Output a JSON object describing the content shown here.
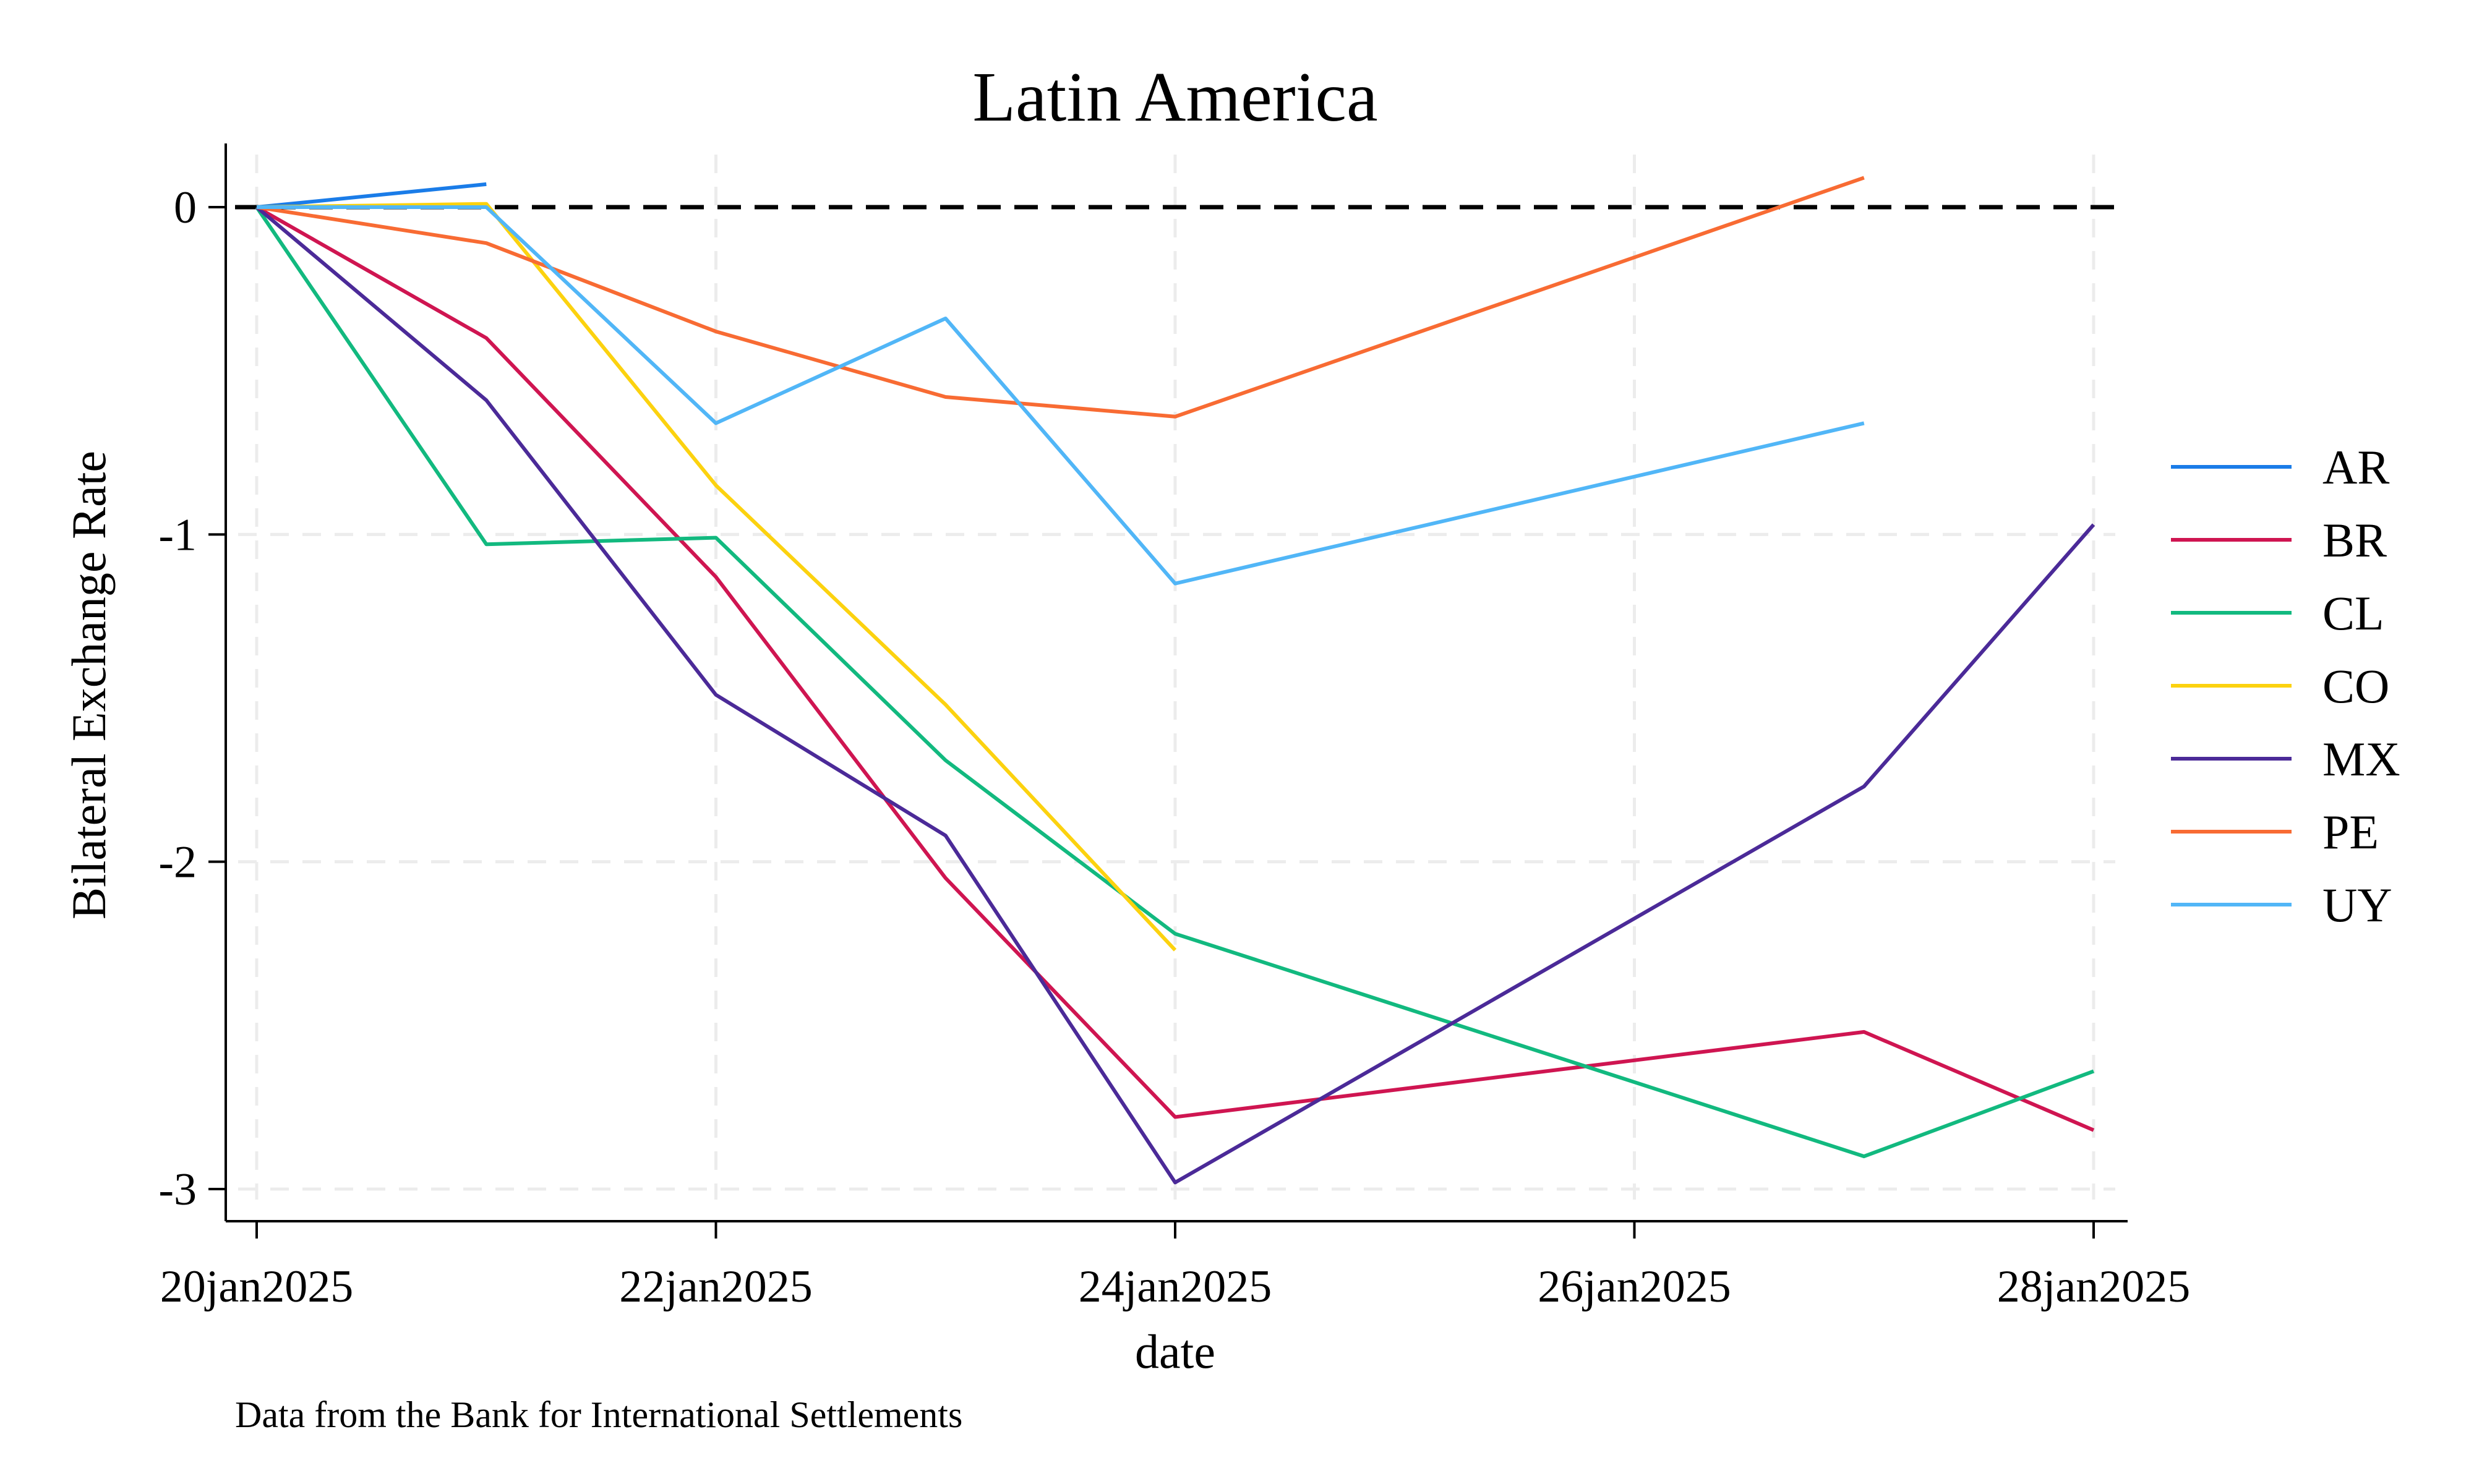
{
  "chart_data": {
    "type": "line",
    "title": "Latin America",
    "xlabel": "date",
    "ylabel": "Bilateral Exchange Rate",
    "note": "Data from the Bank for International Settlements",
    "x_ticks": [
      "20jan2025",
      "22jan2025",
      "24jan2025",
      "26jan2025",
      "28jan2025"
    ],
    "y_ticks": [
      0,
      -1,
      -2,
      -3
    ],
    "xlim": [
      "2025-01-20",
      "2025-01-28"
    ],
    "ylim": [
      -3.08,
      0.2
    ],
    "grid": true,
    "reference_line": 0,
    "legend": {
      "position": "right"
    },
    "series": [
      {
        "name": "AR",
        "color": "#1a7ce8",
        "points": [
          [
            "2025-01-20",
            0
          ],
          [
            "2025-01-21",
            0.07
          ]
        ]
      },
      {
        "name": "BR",
        "color": "#cf1551",
        "points": [
          [
            "2025-01-20",
            0
          ],
          [
            "2025-01-21",
            -0.4
          ],
          [
            "2025-01-22",
            -1.13
          ],
          [
            "2025-01-23",
            -2.05
          ],
          [
            "2025-01-24",
            -2.78
          ],
          [
            "2025-01-27",
            -2.52
          ],
          [
            "2025-01-28",
            -2.82
          ]
        ]
      },
      {
        "name": "CL",
        "color": "#12b97f",
        "points": [
          [
            "2025-01-20",
            0
          ],
          [
            "2025-01-21",
            -1.03
          ],
          [
            "2025-01-22",
            -1.01
          ],
          [
            "2025-01-23",
            -1.69
          ],
          [
            "2025-01-24",
            -2.22
          ],
          [
            "2025-01-27",
            -2.9
          ],
          [
            "2025-01-28",
            -2.64
          ]
        ]
      },
      {
        "name": "CO",
        "color": "#fcd20f",
        "points": [
          [
            "2025-01-20",
            0
          ],
          [
            "2025-01-21",
            0.01
          ],
          [
            "2025-01-22",
            -0.85
          ],
          [
            "2025-01-23",
            -1.52
          ],
          [
            "2025-01-24",
            -2.27
          ]
        ]
      },
      {
        "name": "MX",
        "color": "#4b2a98",
        "points": [
          [
            "2025-01-20",
            0
          ],
          [
            "2025-01-21",
            -0.59
          ],
          [
            "2025-01-22",
            -1.49
          ],
          [
            "2025-01-23",
            -1.92
          ],
          [
            "2025-01-24",
            -2.98
          ],
          [
            "2025-01-27",
            -1.77
          ],
          [
            "2025-01-28",
            -0.97
          ]
        ]
      },
      {
        "name": "PE",
        "color": "#f86b33",
        "points": [
          [
            "2025-01-20",
            0
          ],
          [
            "2025-01-21",
            -0.11
          ],
          [
            "2025-01-22",
            -0.38
          ],
          [
            "2025-01-23",
            -0.58
          ],
          [
            "2025-01-24",
            -0.64
          ],
          [
            "2025-01-27",
            0.09
          ]
        ]
      },
      {
        "name": "UY",
        "color": "#51b6f7",
        "points": [
          [
            "2025-01-20",
            0
          ],
          [
            "2025-01-21",
            0
          ],
          [
            "2025-01-22",
            -0.66
          ],
          [
            "2025-01-23",
            -0.34
          ],
          [
            "2025-01-24",
            -1.15
          ],
          [
            "2025-01-27",
            -0.66
          ]
        ]
      }
    ]
  }
}
